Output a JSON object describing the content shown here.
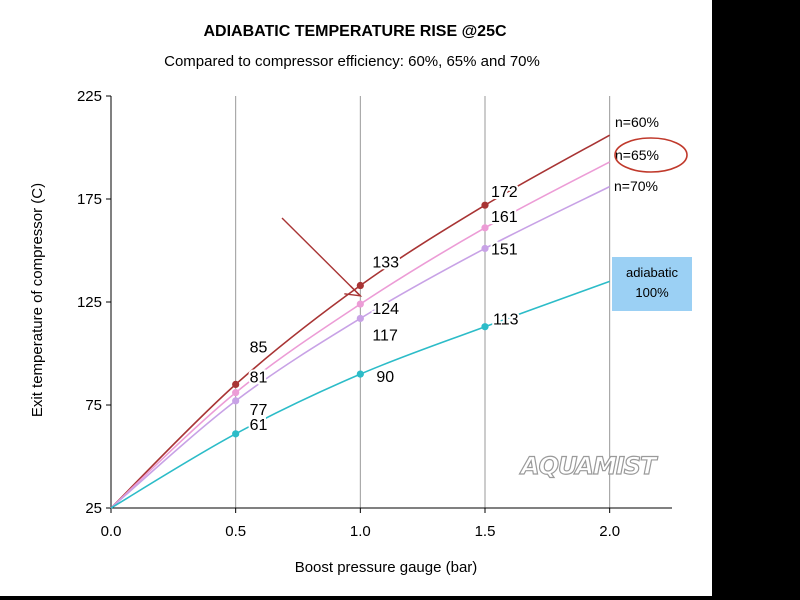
{
  "chart_data": {
    "type": "line",
    "title": "ADIABATIC TEMPERATURE RISE @25C",
    "subtitle": "Compared to compressor efficiency: 60%, 65% and 70%",
    "xlabel": "Boost pressure gauge (bar)",
    "ylabel": "Exit temperature of compressor (C)",
    "xlim": [
      0,
      2.25
    ],
    "ylim": [
      25,
      225
    ],
    "x_ticks": [
      "0.0",
      "0.5",
      "1.0",
      "1.5",
      "2.0"
    ],
    "y_ticks": [
      "25",
      "75",
      "125",
      "175",
      "225"
    ],
    "grid": "vertical",
    "series": [
      {
        "name": "n=60%",
        "color": "#a83434",
        "x": [
          0,
          0.5,
          1.0,
          1.5,
          2.0
        ],
        "y": [
          25,
          85,
          133,
          172,
          206
        ],
        "labels": [
          "",
          "85",
          "133",
          "172",
          ""
        ]
      },
      {
        "name": "n=65%",
        "color": "#ec9cd6",
        "x": [
          0,
          0.5,
          1.0,
          1.5,
          2.0
        ],
        "y": [
          25,
          81,
          124,
          161,
          193
        ],
        "labels": [
          "",
          "81",
          "124",
          "161",
          ""
        ]
      },
      {
        "name": "n=70%",
        "color": "#c8a2e6",
        "x": [
          0,
          0.5,
          1.0,
          1.5,
          2.0
        ],
        "y": [
          25,
          77,
          117,
          151,
          181
        ],
        "labels": [
          "",
          "77",
          "117",
          "151",
          ""
        ]
      },
      {
        "name": "adiabatic 100%",
        "color": "#2cbcc8",
        "x": [
          0,
          0.5,
          1.0,
          1.5,
          2.0
        ],
        "y": [
          25,
          61,
          90,
          113,
          135
        ],
        "labels": [
          "",
          "61",
          "90",
          "113",
          ""
        ]
      }
    ],
    "annotations": {
      "adiabatic_box": [
        "adiabatic",
        "100%"
      ],
      "arrow_target": {
        "x": 1.0,
        "y": 128
      },
      "highlight": "n=65%"
    },
    "watermark": "AQUAMIST"
  }
}
